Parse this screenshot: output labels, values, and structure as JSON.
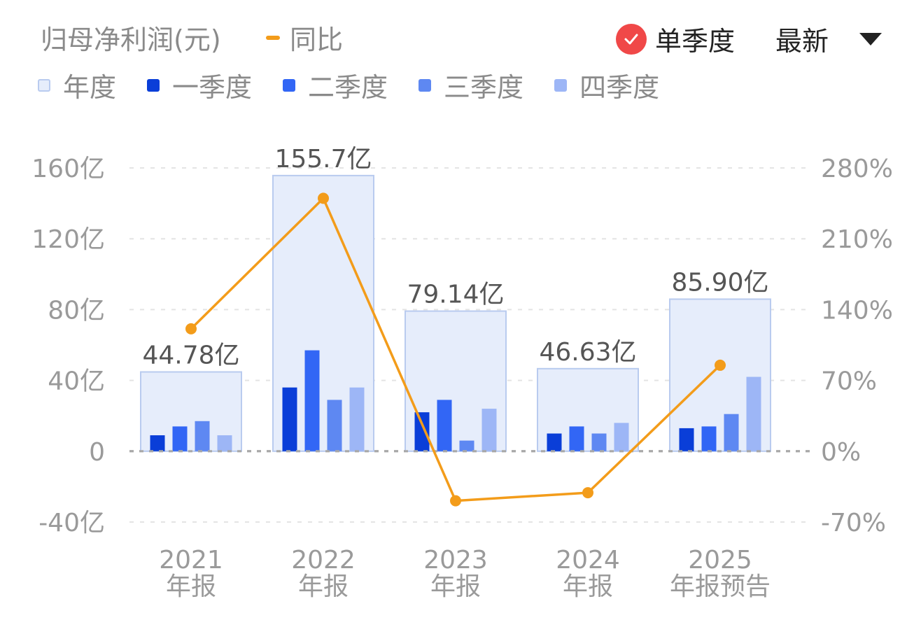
{
  "header": {
    "title": "归母净利润(元)",
    "yoy_label": "同比",
    "toggle_label": "单季度",
    "select_label": "最新"
  },
  "legend": {
    "annual": "年度",
    "q1": "一季度",
    "q2": "二季度",
    "q3": "三季度",
    "q4": "四季度"
  },
  "colors": {
    "annual_fill": "#e6edfb",
    "annual_stroke": "#b9cbef",
    "q1": "#0a3ed8",
    "q2": "#3266f5",
    "q3": "#5e88f2",
    "q4": "#9db6f6",
    "yoy": "#f39c1a",
    "toggle": "#f04848"
  },
  "chart_data": {
    "type": "bar",
    "categories": [
      "2021\n年报",
      "2022\n年报",
      "2023\n年报",
      "2024\n年报",
      "2025\n年报预告"
    ],
    "annual_values": [
      44.78,
      155.7,
      79.14,
      46.63,
      85.9
    ],
    "annual_labels": [
      "44.78亿",
      "155.7亿",
      "79.14亿",
      "46.63亿",
      "85.90亿"
    ],
    "series": [
      {
        "name": "一季度",
        "values": [
          9,
          36,
          22,
          10,
          13
        ]
      },
      {
        "name": "二季度",
        "values": [
          14,
          57,
          29,
          14,
          14
        ]
      },
      {
        "name": "三季度",
        "values": [
          17,
          29,
          6,
          10,
          21
        ]
      },
      {
        "name": "四季度",
        "values": [
          9,
          36,
          24,
          16,
          42
        ]
      }
    ],
    "yoy": {
      "name": "同比",
      "values": [
        121,
        250,
        -49,
        -41,
        85
      ]
    },
    "y_left": {
      "ticks": [
        -40,
        0,
        40,
        80,
        120,
        160
      ],
      "tick_labels": [
        "-40亿",
        "0",
        "40亿",
        "80亿",
        "120亿",
        "160亿"
      ],
      "lim": [
        -40,
        160
      ]
    },
    "y_right": {
      "ticks": [
        -70,
        0,
        70,
        140,
        210,
        280
      ],
      "tick_labels": [
        "-70%",
        "0%",
        "70%",
        "140%",
        "210%",
        "280%"
      ],
      "lim": [
        -70,
        280
      ]
    },
    "grid": true
  }
}
